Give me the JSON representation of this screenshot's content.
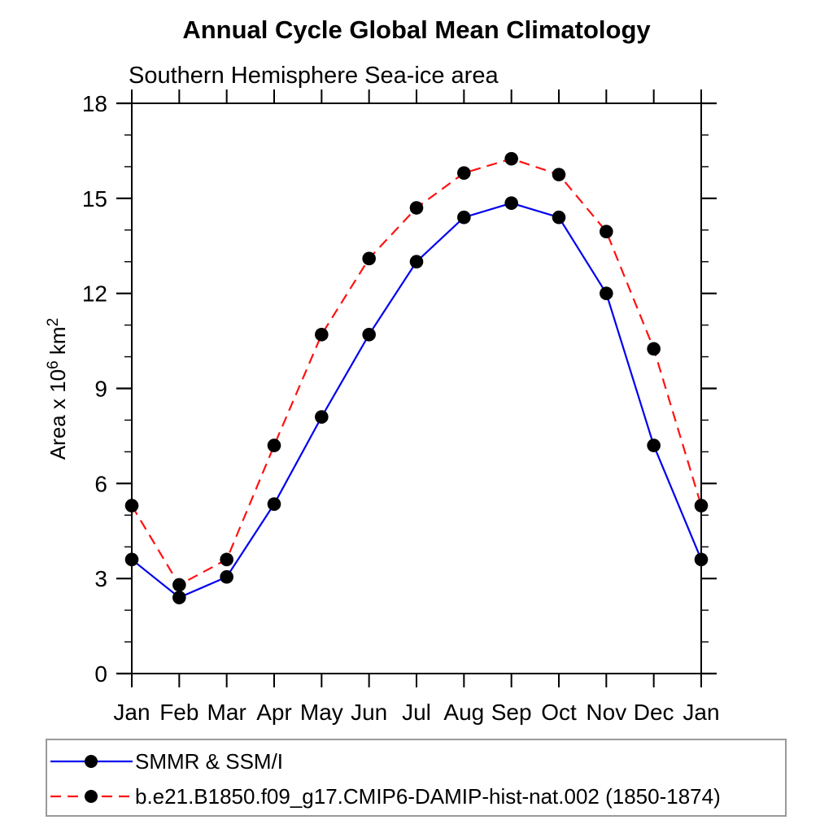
{
  "title": "Annual Cycle Global Mean Climatology",
  "subtitle": "Southern Hemisphere Sea-ice area",
  "chart_data": {
    "type": "line",
    "categories": [
      "Jan",
      "Feb",
      "Mar",
      "Apr",
      "May",
      "Jun",
      "Jul",
      "Aug",
      "Sep",
      "Oct",
      "Nov",
      "Dec",
      "Jan"
    ],
    "series": [
      {
        "name": "SMMR & SSM/I",
        "color": "#0000ee",
        "line_style": "solid",
        "marker": "filled-circle",
        "marker_color": "#000000",
        "values": [
          3.6,
          2.4,
          3.05,
          5.35,
          8.1,
          10.7,
          13.0,
          14.4,
          14.85,
          14.4,
          12.0,
          7.2,
          3.6
        ]
      },
      {
        "name": "b.e21.B1850.f09_g17.CMIP6-DAMIP-hist-nat.002 (1850-1874)",
        "color": "#ff1111",
        "line_style": "dashed",
        "marker": "filled-circle",
        "marker_color": "#000000",
        "values": [
          5.3,
          2.8,
          3.6,
          7.2,
          10.7,
          13.1,
          14.7,
          15.8,
          16.25,
          15.75,
          13.95,
          10.25,
          5.3
        ]
      }
    ],
    "xlabel": "",
    "ylabel": {
      "plain": "Area x 10⁶ km²",
      "base1": "Area x 10",
      "sup1": "6",
      "base2": " km",
      "sup2": "2"
    },
    "ylim": [
      0,
      18
    ],
    "ytick_major": [
      0,
      3,
      6,
      9,
      12,
      15,
      18
    ],
    "ytick_minor_step": 1,
    "grid": false,
    "legend_position": "bottom-left-box",
    "axis_color": "#000000",
    "text_color": "#000000",
    "background": "#ffffff"
  }
}
